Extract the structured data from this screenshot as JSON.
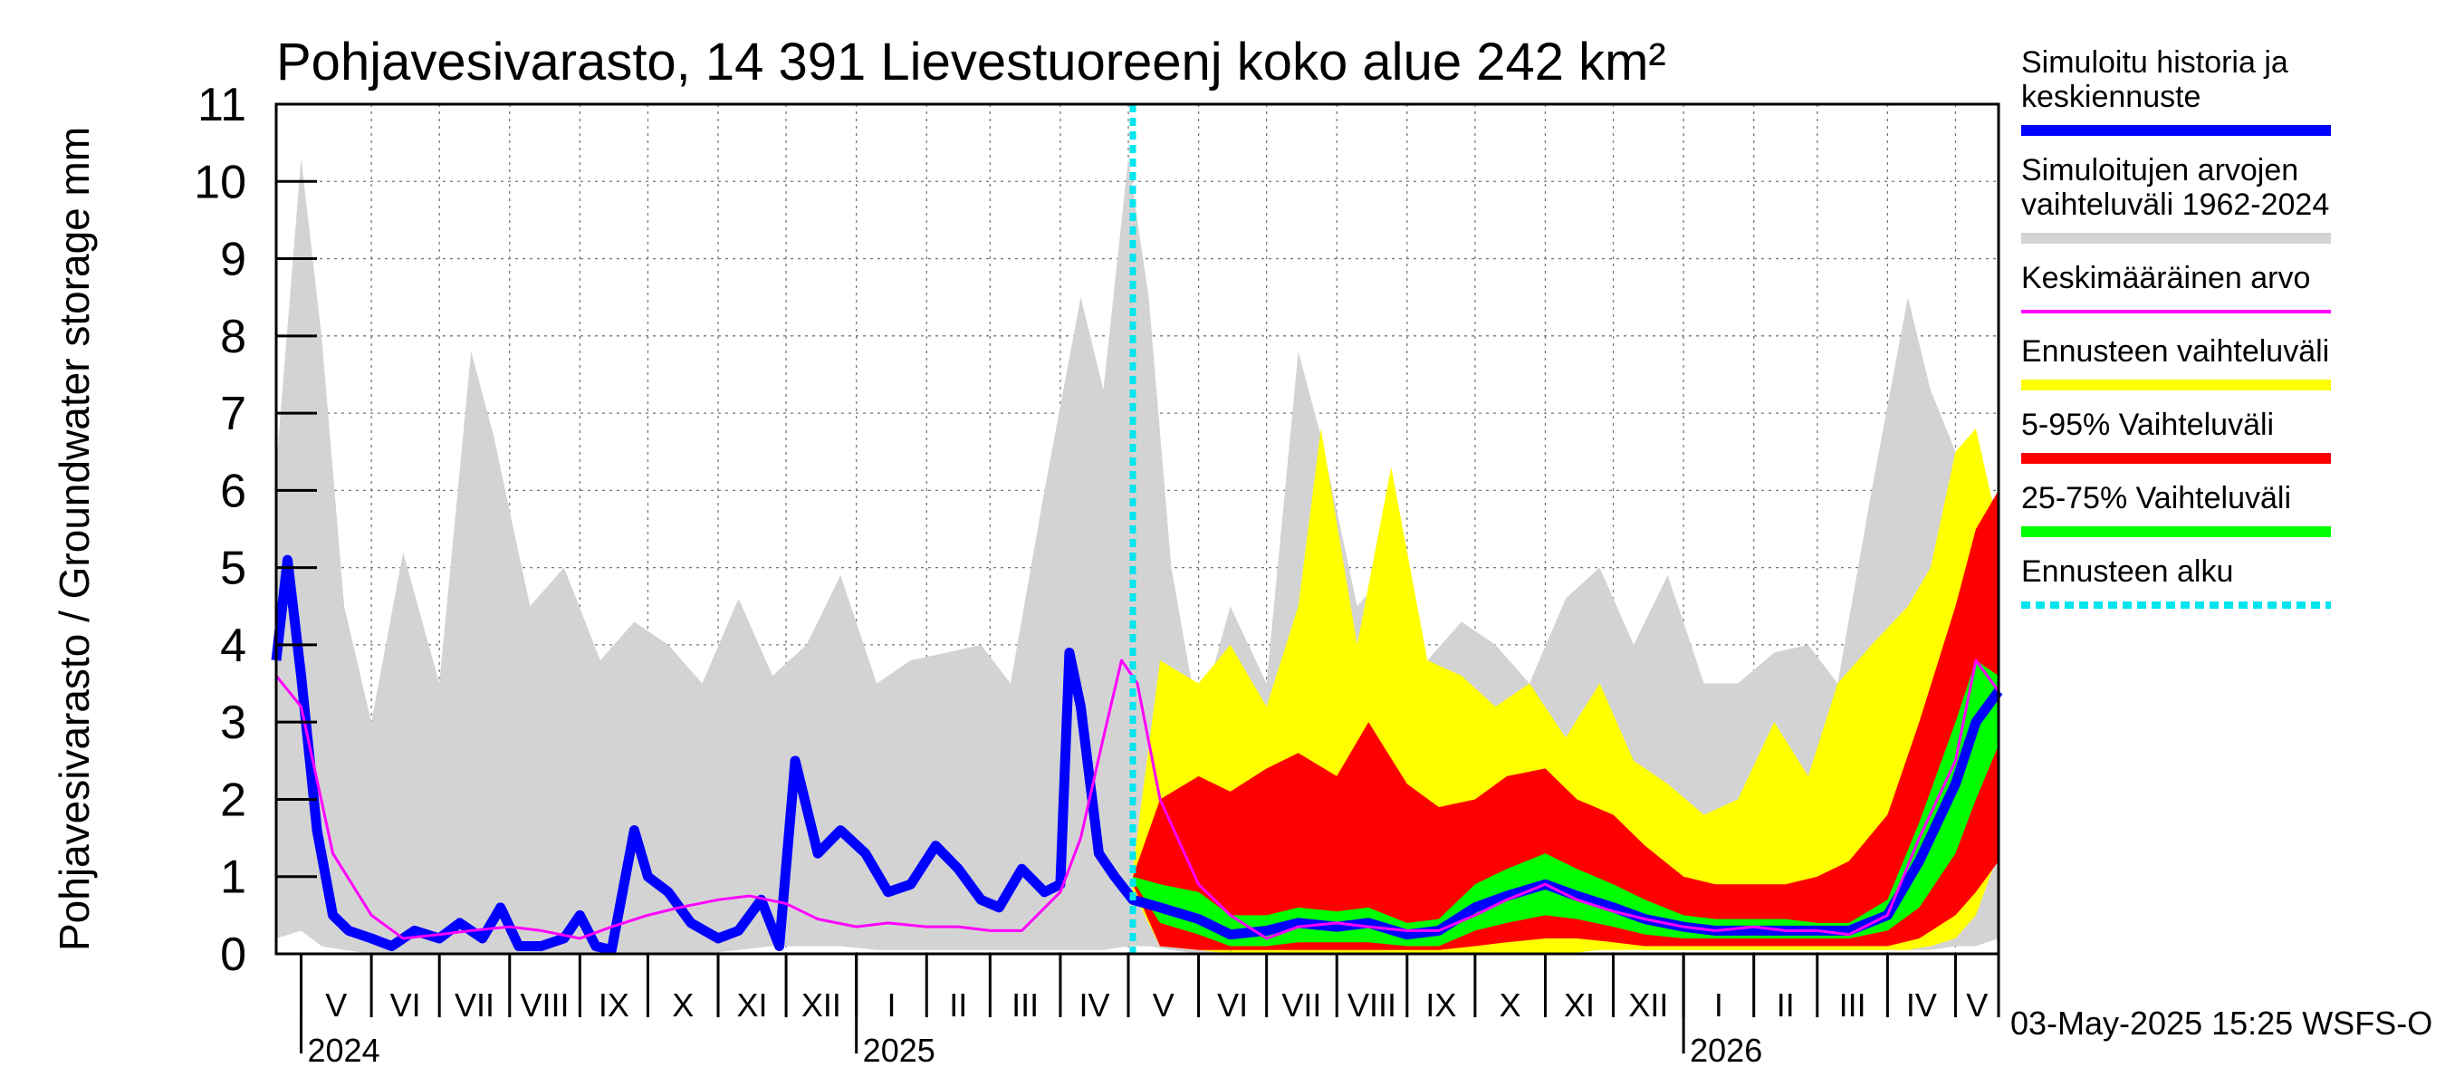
{
  "chart_data": {
    "type": "area",
    "title": "Pohjavesivarasto, 14 391 Lievestuoreenj koko alue 242 km²",
    "ylabel": "Pohjavesivarasto / Groundwater storage   mm",
    "ylim": [
      0,
      11
    ],
    "yticks": [
      0,
      1,
      2,
      3,
      4,
      5,
      6,
      7,
      8,
      9,
      10,
      11
    ],
    "grid": true,
    "legend_position": "right",
    "x_start": "2024-04-20",
    "x_end": "2026-05-20",
    "forecast_start": "2025-05-03",
    "months": [
      {
        "label": "V",
        "start": "2024-05-01"
      },
      {
        "label": "VI",
        "start": "2024-06-01"
      },
      {
        "label": "VII",
        "start": "2024-07-01"
      },
      {
        "label": "VIII",
        "start": "2024-08-01"
      },
      {
        "label": "IX",
        "start": "2024-09-01"
      },
      {
        "label": "X",
        "start": "2024-10-01"
      },
      {
        "label": "XI",
        "start": "2024-11-01"
      },
      {
        "label": "XII",
        "start": "2024-12-01"
      },
      {
        "label": "I",
        "start": "2025-01-01"
      },
      {
        "label": "II",
        "start": "2025-02-01"
      },
      {
        "label": "III",
        "start": "2025-03-01"
      },
      {
        "label": "IV",
        "start": "2025-04-01"
      },
      {
        "label": "V",
        "start": "2025-05-01"
      },
      {
        "label": "VI",
        "start": "2025-06-01"
      },
      {
        "label": "VII",
        "start": "2025-07-01"
      },
      {
        "label": "VIII",
        "start": "2025-08-01"
      },
      {
        "label": "IX",
        "start": "2025-09-01"
      },
      {
        "label": "X",
        "start": "2025-10-01"
      },
      {
        "label": "XI",
        "start": "2025-11-01"
      },
      {
        "label": "XII",
        "start": "2025-12-01"
      },
      {
        "label": "I",
        "start": "2026-01-01"
      },
      {
        "label": "II",
        "start": "2026-02-01"
      },
      {
        "label": "III",
        "start": "2026-03-01"
      },
      {
        "label": "IV",
        "start": "2026-04-01"
      },
      {
        "label": "V",
        "start": "2026-05-01"
      }
    ],
    "years": [
      {
        "label": "2024",
        "date": "2024-05-01"
      },
      {
        "label": "2025",
        "date": "2025-01-01"
      },
      {
        "label": "2026",
        "date": "2026-01-01"
      }
    ],
    "series": [
      {
        "name": "Simuloitujen arvojen vaihteluväli 1962-2024",
        "kind": "band",
        "color": "#d3d3d3",
        "x": [
          "2024-04-20",
          "2024-05-01",
          "2024-05-10",
          "2024-05-20",
          "2024-06-01",
          "2024-06-15",
          "2024-07-01",
          "2024-07-15",
          "2024-07-25",
          "2024-08-10",
          "2024-08-25",
          "2024-09-10",
          "2024-09-25",
          "2024-10-10",
          "2024-10-25",
          "2024-11-10",
          "2024-11-25",
          "2024-12-10",
          "2024-12-25",
          "2025-01-10",
          "2025-01-25",
          "2025-02-10",
          "2025-02-25",
          "2025-03-10",
          "2025-03-25",
          "2025-04-10",
          "2025-04-20",
          "2025-05-01",
          "2025-05-10",
          "2025-05-20",
          "2025-06-01",
          "2025-06-15",
          "2025-07-01",
          "2025-07-15",
          "2025-07-25",
          "2025-08-10",
          "2025-08-25",
          "2025-09-10",
          "2025-09-25",
          "2025-10-10",
          "2025-10-25",
          "2025-11-10",
          "2025-11-25",
          "2025-12-10",
          "2025-12-25",
          "2026-01-10",
          "2026-01-25",
          "2026-02-10",
          "2026-02-25",
          "2026-03-10",
          "2026-03-25",
          "2026-04-10",
          "2026-04-20",
          "2026-05-01",
          "2026-05-10",
          "2026-05-20"
        ],
        "lower": [
          0.2,
          0.3,
          0.1,
          0.05,
          0,
          0,
          0,
          0,
          0,
          0,
          0,
          0,
          0,
          0,
          0,
          0.05,
          0.1,
          0.1,
          0.1,
          0.05,
          0.05,
          0.05,
          0.05,
          0.05,
          0.05,
          0.05,
          0.05,
          0.1,
          0.1,
          0.05,
          0,
          0,
          0,
          0,
          0,
          0,
          0,
          0,
          0,
          0,
          0,
          0,
          0.05,
          0.1,
          0.1,
          0.05,
          0.05,
          0.05,
          0.05,
          0.05,
          0.05,
          0.05,
          0.05,
          0.1,
          0.1,
          0.2
        ],
        "upper": [
          6.3,
          10.3,
          8.0,
          4.5,
          3.0,
          5.2,
          3.5,
          7.8,
          6.7,
          4.5,
          5.0,
          3.8,
          4.3,
          4.0,
          3.5,
          4.6,
          3.6,
          4.0,
          4.9,
          3.5,
          3.8,
          3.9,
          4.0,
          3.5,
          6.0,
          8.5,
          7.3,
          10.3,
          8.5,
          5.0,
          3.0,
          4.5,
          3.5,
          7.8,
          6.7,
          4.5,
          5.0,
          3.8,
          4.3,
          4.0,
          3.5,
          4.6,
          5.0,
          4.0,
          4.9,
          3.5,
          3.5,
          3.9,
          4.0,
          3.5,
          6.0,
          8.5,
          7.3,
          6.5,
          4.5,
          4.0
        ]
      },
      {
        "name": "Ennusteen vaihteluväli",
        "kind": "band",
        "color": "#ffff00",
        "x": [
          "2025-05-03",
          "2025-05-15",
          "2025-06-01",
          "2025-06-15",
          "2025-07-01",
          "2025-07-15",
          "2025-07-25",
          "2025-08-10",
          "2025-08-25",
          "2025-09-10",
          "2025-09-25",
          "2025-10-10",
          "2025-10-25",
          "2025-11-10",
          "2025-11-25",
          "2025-12-10",
          "2025-12-25",
          "2026-01-10",
          "2026-01-25",
          "2026-02-10",
          "2026-02-25",
          "2026-03-10",
          "2026-03-25",
          "2026-04-10",
          "2026-04-20",
          "2026-05-01",
          "2026-05-10",
          "2026-05-20"
        ],
        "lower": [
          0.8,
          0.1,
          0.05,
          0,
          0,
          0,
          0,
          0,
          0,
          0,
          0,
          0,
          0,
          0,
          0.05,
          0.05,
          0.05,
          0.05,
          0.05,
          0.05,
          0.05,
          0.05,
          0.05,
          0.05,
          0.1,
          0.2,
          0.5,
          1.3
        ],
        "upper": [
          1.1,
          3.8,
          3.5,
          4.0,
          3.2,
          4.5,
          6.8,
          4.0,
          6.3,
          3.8,
          3.6,
          3.2,
          3.5,
          2.8,
          3.5,
          2.5,
          2.2,
          1.8,
          2.0,
          3.0,
          2.3,
          3.5,
          4.0,
          4.5,
          5.0,
          6.5,
          6.8,
          5.5
        ]
      },
      {
        "name": "5-95% Vaihteluväli",
        "kind": "band",
        "color": "#ff0000",
        "x": [
          "2025-05-03",
          "2025-05-15",
          "2025-06-01",
          "2025-06-15",
          "2025-07-01",
          "2025-07-15",
          "2025-08-01",
          "2025-08-15",
          "2025-09-01",
          "2025-09-15",
          "2025-10-01",
          "2025-10-15",
          "2025-11-01",
          "2025-11-15",
          "2025-12-01",
          "2025-12-15",
          "2026-01-01",
          "2026-01-15",
          "2026-02-01",
          "2026-02-15",
          "2026-03-01",
          "2026-03-15",
          "2026-04-01",
          "2026-04-15",
          "2026-05-01",
          "2026-05-10",
          "2026-05-20"
        ],
        "lower": [
          0.9,
          0.1,
          0.05,
          0.05,
          0.05,
          0.05,
          0.05,
          0.05,
          0.05,
          0.05,
          0.1,
          0.15,
          0.2,
          0.2,
          0.15,
          0.1,
          0.1,
          0.1,
          0.1,
          0.1,
          0.1,
          0.1,
          0.1,
          0.2,
          0.5,
          0.8,
          1.2
        ],
        "upper": [
          1.0,
          2.0,
          2.3,
          2.1,
          2.4,
          2.6,
          2.3,
          3.0,
          2.2,
          1.9,
          2.0,
          2.3,
          2.4,
          2.0,
          1.8,
          1.4,
          1.0,
          0.9,
          0.9,
          0.9,
          1.0,
          1.2,
          1.8,
          3.0,
          4.5,
          5.5,
          6.0
        ]
      },
      {
        "name": "25-75% Vaihteluväli",
        "kind": "band",
        "color": "#00ff00",
        "x": [
          "2025-05-03",
          "2025-05-15",
          "2025-06-01",
          "2025-06-15",
          "2025-07-01",
          "2025-07-15",
          "2025-08-01",
          "2025-08-15",
          "2025-09-01",
          "2025-09-15",
          "2025-10-01",
          "2025-10-15",
          "2025-11-01",
          "2025-11-15",
          "2025-12-01",
          "2025-12-15",
          "2026-01-01",
          "2026-01-15",
          "2026-02-01",
          "2026-02-15",
          "2026-03-01",
          "2026-03-15",
          "2026-04-01",
          "2026-04-15",
          "2026-05-01",
          "2026-05-10",
          "2026-05-20"
        ],
        "lower": [
          0.95,
          0.4,
          0.25,
          0.1,
          0.1,
          0.15,
          0.15,
          0.15,
          0.1,
          0.1,
          0.3,
          0.4,
          0.5,
          0.45,
          0.35,
          0.25,
          0.2,
          0.2,
          0.2,
          0.2,
          0.2,
          0.2,
          0.3,
          0.6,
          1.3,
          2.0,
          2.7
        ],
        "upper": [
          1.0,
          0.9,
          0.8,
          0.5,
          0.5,
          0.6,
          0.55,
          0.6,
          0.4,
          0.45,
          0.9,
          1.1,
          1.3,
          1.1,
          0.9,
          0.7,
          0.5,
          0.45,
          0.45,
          0.45,
          0.4,
          0.4,
          0.7,
          1.7,
          3.0,
          3.8,
          3.6
        ]
      },
      {
        "name": "Simuloitu historia ja keskiennuste",
        "kind": "line",
        "color": "#0000ff",
        "x": [
          "2024-04-20",
          "2024-04-25",
          "2024-05-01",
          "2024-05-08",
          "2024-05-15",
          "2024-05-22",
          "2024-06-01",
          "2024-06-10",
          "2024-06-20",
          "2024-07-01",
          "2024-07-10",
          "2024-07-20",
          "2024-07-28",
          "2024-08-05",
          "2024-08-15",
          "2024-08-25",
          "2024-09-01",
          "2024-09-08",
          "2024-09-15",
          "2024-09-25",
          "2024-10-01",
          "2024-10-10",
          "2024-10-20",
          "2024-11-01",
          "2024-11-10",
          "2024-11-20",
          "2024-11-28",
          "2024-12-05",
          "2024-12-15",
          "2024-12-25",
          "2025-01-05",
          "2025-01-15",
          "2025-01-25",
          "2025-02-05",
          "2025-02-15",
          "2025-02-25",
          "2025-03-05",
          "2025-03-15",
          "2025-03-25",
          "2025-04-01",
          "2025-04-05",
          "2025-04-10",
          "2025-04-18",
          "2025-04-25",
          "2025-05-03",
          "2025-05-15",
          "2025-06-01",
          "2025-06-15",
          "2025-07-01",
          "2025-07-15",
          "2025-08-01",
          "2025-08-15",
          "2025-09-01",
          "2025-09-15",
          "2025-10-01",
          "2025-10-15",
          "2025-11-01",
          "2025-11-15",
          "2025-12-01",
          "2025-12-15",
          "2026-01-01",
          "2026-01-15",
          "2026-02-01",
          "2026-02-15",
          "2026-03-01",
          "2026-03-15",
          "2026-04-01",
          "2026-04-15",
          "2026-05-01",
          "2026-05-10",
          "2026-05-20"
        ],
        "values": [
          3.8,
          5.1,
          3.6,
          1.6,
          0.5,
          0.3,
          0.2,
          0.1,
          0.3,
          0.2,
          0.4,
          0.2,
          0.6,
          0.1,
          0.1,
          0.2,
          0.5,
          0.1,
          0.05,
          1.6,
          1.0,
          0.8,
          0.4,
          0.2,
          0.3,
          0.7,
          0.1,
          2.5,
          1.3,
          1.6,
          1.3,
          0.8,
          0.9,
          1.4,
          1.1,
          0.7,
          0.6,
          1.1,
          0.8,
          0.9,
          3.9,
          3.2,
          1.3,
          1.0,
          0.7,
          0.6,
          0.45,
          0.25,
          0.3,
          0.4,
          0.35,
          0.4,
          0.25,
          0.3,
          0.6,
          0.75,
          0.9,
          0.75,
          0.6,
          0.45,
          0.35,
          0.3,
          0.3,
          0.3,
          0.3,
          0.3,
          0.5,
          1.2,
          2.2,
          3.0,
          3.4
        ]
      },
      {
        "name": "Keskimääräinen arvo",
        "kind": "line",
        "color": "#ff00ff",
        "x": [
          "2024-04-20",
          "2024-05-01",
          "2024-05-15",
          "2024-06-01",
          "2024-06-15",
          "2024-07-01",
          "2024-07-15",
          "2024-08-01",
          "2024-08-15",
          "2024-09-01",
          "2024-09-15",
          "2024-10-01",
          "2024-10-15",
          "2024-11-01",
          "2024-11-15",
          "2024-12-01",
          "2024-12-15",
          "2025-01-01",
          "2025-01-15",
          "2025-02-01",
          "2025-02-15",
          "2025-03-01",
          "2025-03-15",
          "2025-04-01",
          "2025-04-10",
          "2025-04-20",
          "2025-04-28",
          "2025-05-05",
          "2025-05-15",
          "2025-06-01",
          "2025-06-15",
          "2025-07-01",
          "2025-07-15",
          "2025-08-01",
          "2025-08-15",
          "2025-09-01",
          "2025-09-15",
          "2025-10-01",
          "2025-10-15",
          "2025-11-01",
          "2025-11-15",
          "2025-12-01",
          "2025-12-15",
          "2026-01-01",
          "2026-01-15",
          "2026-02-01",
          "2026-02-15",
          "2026-03-01",
          "2026-03-15",
          "2026-04-01",
          "2026-04-15",
          "2026-05-01",
          "2026-05-10",
          "2026-05-20"
        ],
        "values": [
          3.6,
          3.2,
          1.3,
          0.5,
          0.2,
          0.25,
          0.3,
          0.35,
          0.3,
          0.2,
          0.35,
          0.5,
          0.6,
          0.7,
          0.75,
          0.65,
          0.45,
          0.35,
          0.4,
          0.35,
          0.35,
          0.3,
          0.3,
          0.8,
          1.5,
          2.8,
          3.8,
          3.5,
          2.0,
          0.9,
          0.5,
          0.2,
          0.35,
          0.4,
          0.35,
          0.3,
          0.3,
          0.5,
          0.7,
          0.9,
          0.7,
          0.55,
          0.45,
          0.35,
          0.3,
          0.35,
          0.3,
          0.3,
          0.25,
          0.5,
          1.5,
          2.5,
          3.8,
          3.4
        ]
      }
    ],
    "legend": [
      {
        "label": "Simuloitu historia ja keskiennuste",
        "color": "#0000ff",
        "style": "solid"
      },
      {
        "label": "Simuloitujen arvojen vaihteluväli 1962-2024",
        "color": "#d3d3d3",
        "style": "solid"
      },
      {
        "label": "Keskimääräinen arvo",
        "color": "#ff00ff",
        "style": "thin"
      },
      {
        "label": "Ennusteen vaihteluväli",
        "color": "#ffff00",
        "style": "solid"
      },
      {
        "label": "5-95% Vaihteluväli",
        "color": "#ff0000",
        "style": "solid"
      },
      {
        "label": "25-75% Vaihteluväli",
        "color": "#00ff00",
        "style": "solid"
      },
      {
        "label": "Ennusteen alku",
        "color": "#00e5ee",
        "style": "dotted"
      }
    ],
    "footer": "03-May-2025 15:25 WSFS-O"
  }
}
